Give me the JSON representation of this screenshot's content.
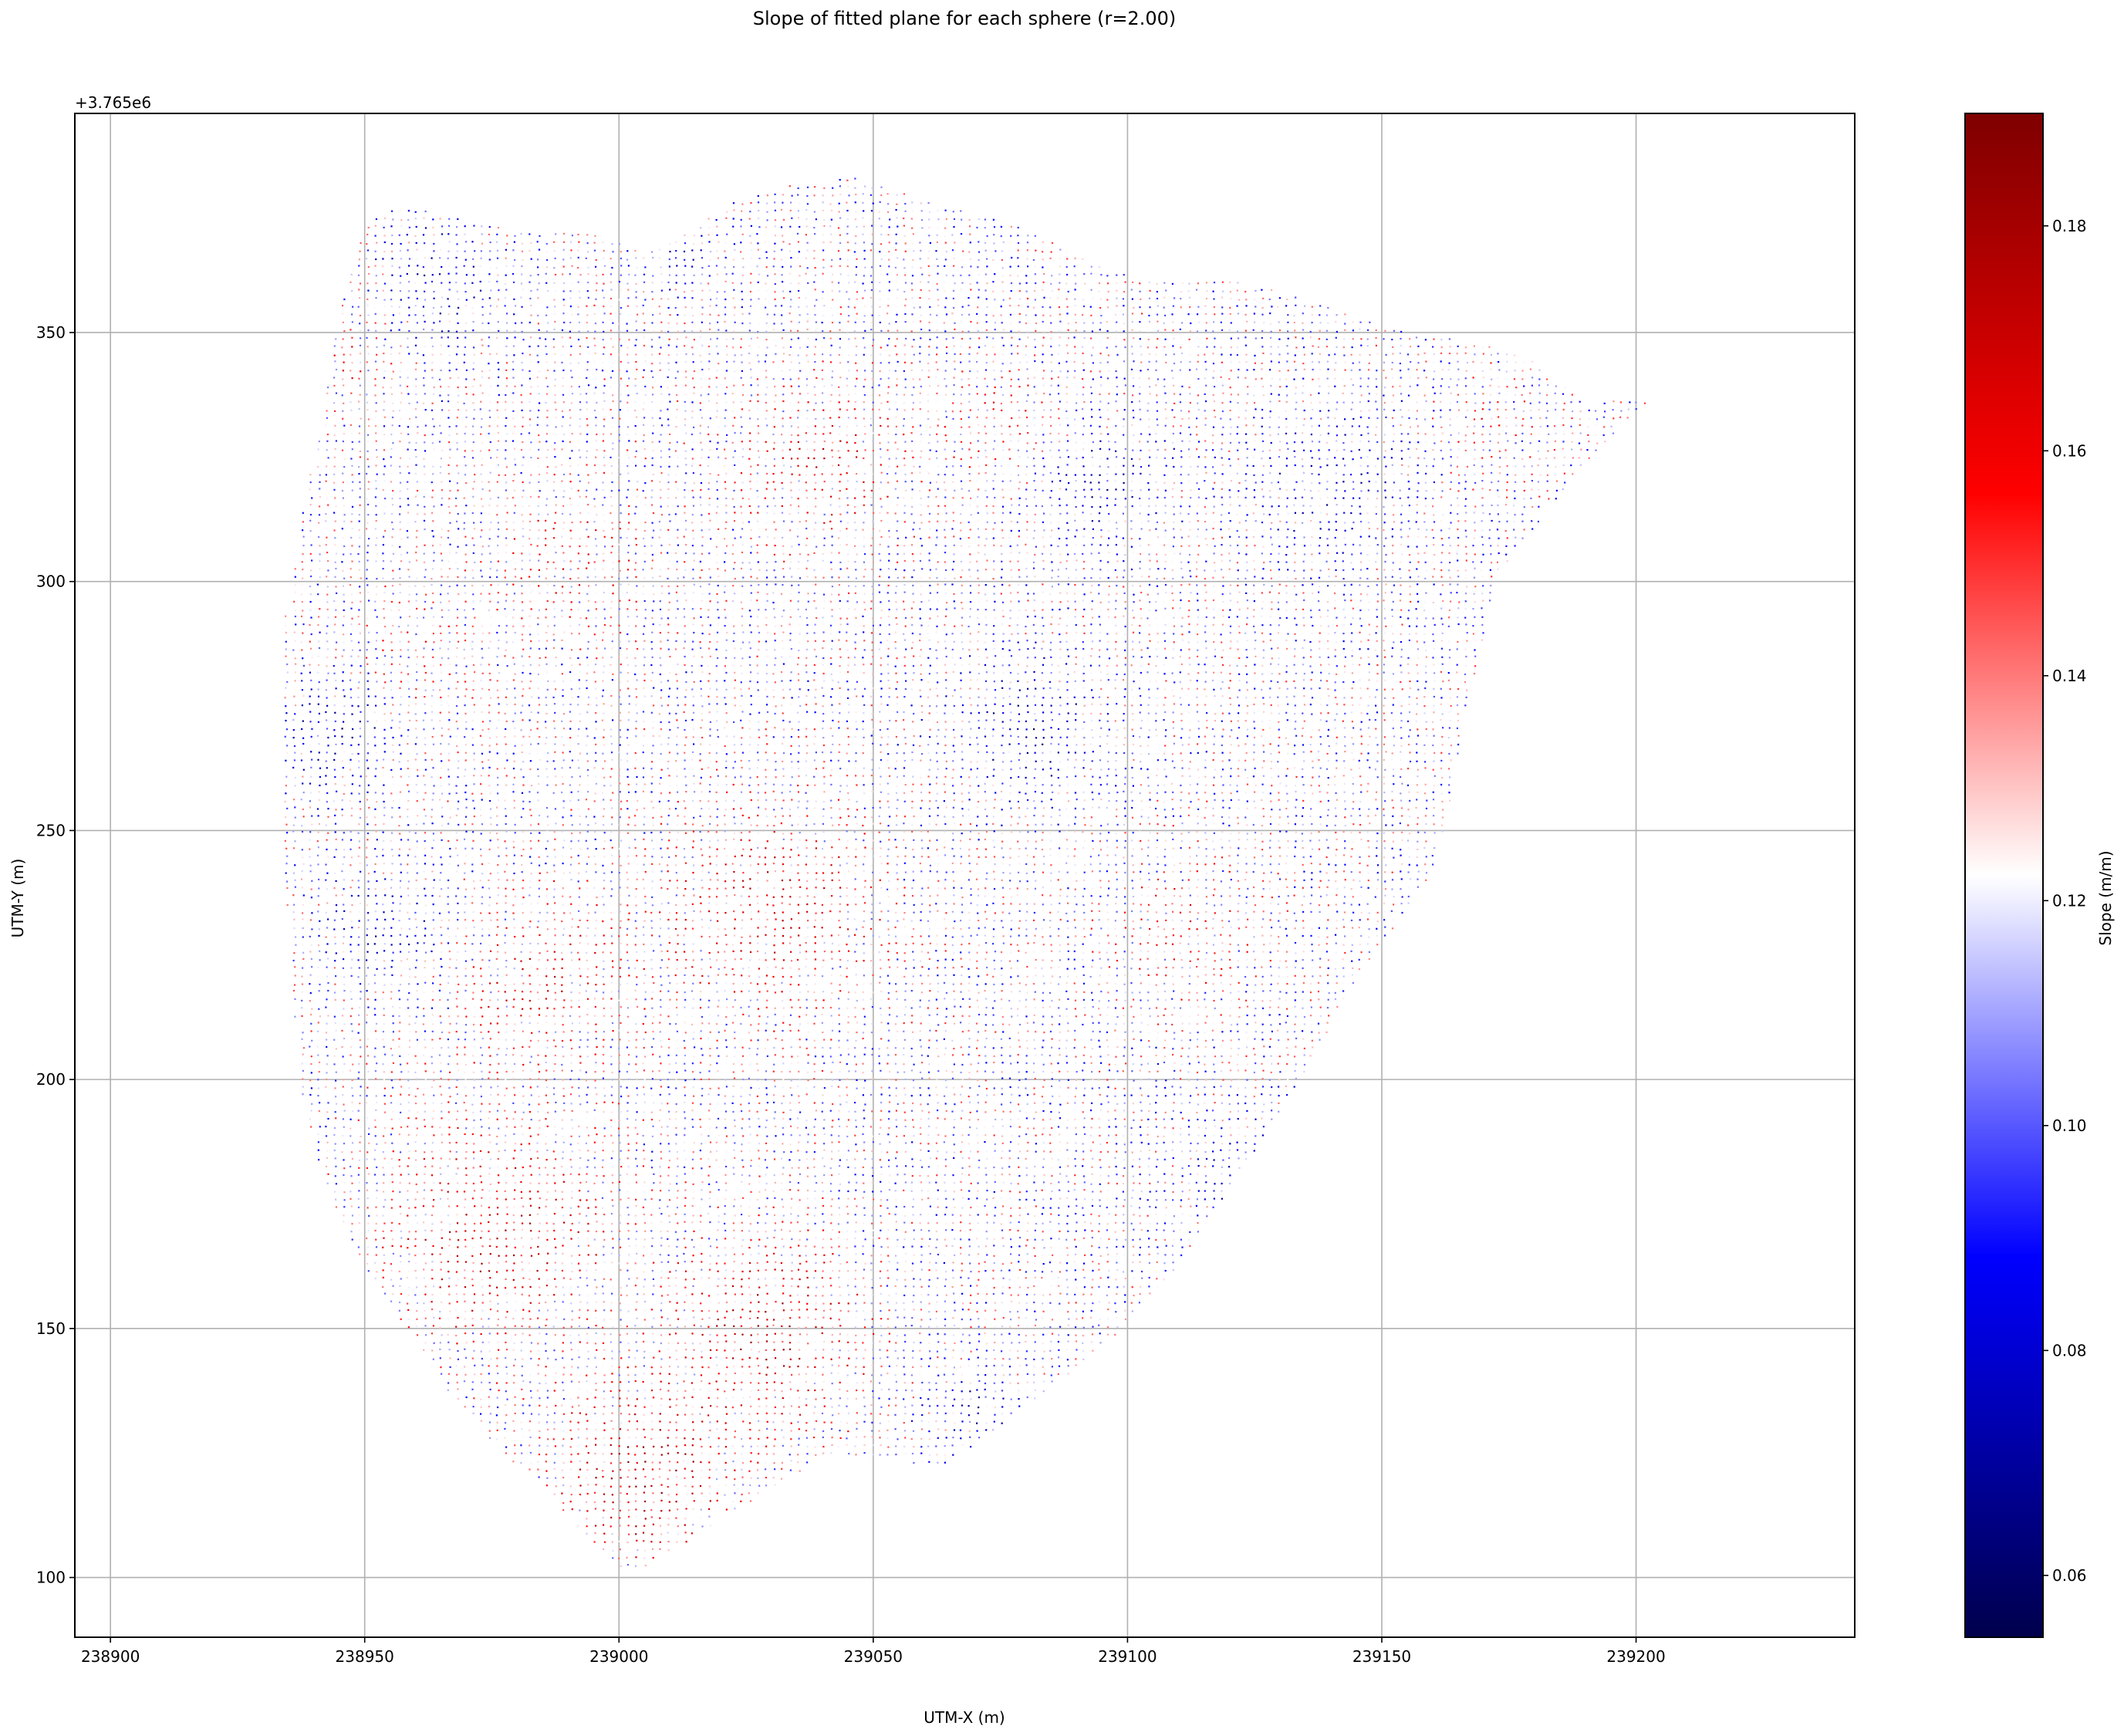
{
  "chart_data": {
    "type": "scatter",
    "title": "Slope of fitted plane for each sphere (r=2.00)",
    "xlabel": "UTM-X (m)",
    "ylabel": "UTM-Y (m)",
    "y_offset_label": "+3.765e6",
    "xlim": [
      238893,
      239243
    ],
    "ylim": [
      88,
      394
    ],
    "x_ticks": [
      238900,
      238950,
      239000,
      239050,
      239100,
      239150,
      239200
    ],
    "x_tick_labels": [
      "238900",
      "238950",
      "239000",
      "239050",
      "239100",
      "239150",
      "239200"
    ],
    "y_ticks": [
      100,
      150,
      200,
      250,
      300,
      350
    ],
    "y_tick_labels": [
      "100",
      "150",
      "200",
      "250",
      "300",
      "350"
    ],
    "grid": true,
    "colorbar": {
      "label": "Slope (m/m)",
      "colormap": "seismic",
      "range": [
        0.0545,
        0.19
      ],
      "ticks": [
        0.06,
        0.08,
        0.1,
        0.12,
        0.14,
        0.16,
        0.18
      ],
      "tick_labels": [
        "0.06",
        "0.08",
        "0.10",
        "0.12",
        "0.14",
        "0.16",
        "0.18"
      ]
    },
    "boundary_polygon": [
      [
        239001,
        101
      ],
      [
        238994,
        108
      ],
      [
        238985,
        118
      ],
      [
        238974,
        128
      ],
      [
        238966,
        138
      ],
      [
        238958,
        150
      ],
      [
        238951,
        160
      ],
      [
        238946,
        170
      ],
      [
        238942,
        180
      ],
      [
        238939,
        190
      ],
      [
        238937,
        200
      ],
      [
        238936,
        215
      ],
      [
        238935,
        230
      ],
      [
        238934,
        250
      ],
      [
        238933,
        270
      ],
      [
        238934,
        290
      ],
      [
        238936,
        305
      ],
      [
        238939,
        320
      ],
      [
        238942,
        335
      ],
      [
        238944,
        348
      ],
      [
        238947,
        362
      ],
      [
        238951,
        373
      ],
      [
        238958,
        376
      ],
      [
        238968,
        373
      ],
      [
        238982,
        370
      ],
      [
        238995,
        370
      ],
      [
        239005,
        366
      ],
      [
        239015,
        371
      ],
      [
        239022,
        376
      ],
      [
        239035,
        380
      ],
      [
        239047,
        381
      ],
      [
        239062,
        376
      ],
      [
        239080,
        371
      ],
      [
        239095,
        363
      ],
      [
        239105,
        360
      ],
      [
        239118,
        361
      ],
      [
        239128,
        359
      ],
      [
        239140,
        355
      ],
      [
        239155,
        350
      ],
      [
        239170,
        348
      ],
      [
        239180,
        344
      ],
      [
        239190,
        336
      ],
      [
        239203,
        337
      ],
      [
        239196,
        330
      ],
      [
        239188,
        322
      ],
      [
        239180,
        310
      ],
      [
        239173,
        302
      ],
      [
        239170,
        288
      ],
      [
        239166,
        272
      ],
      [
        239164,
        258
      ],
      [
        239160,
        242
      ],
      [
        239152,
        230
      ],
      [
        239145,
        220
      ],
      [
        239137,
        205
      ],
      [
        239128,
        190
      ],
      [
        239118,
        175
      ],
      [
        239108,
        160
      ],
      [
        239097,
        148
      ],
      [
        239085,
        138
      ],
      [
        239072,
        128
      ],
      [
        239063,
        122
      ],
      [
        239053,
        124
      ],
      [
        239043,
        125
      ],
      [
        239030,
        118
      ],
      [
        239018,
        110
      ],
      [
        239008,
        104
      ],
      [
        239003,
        101
      ]
    ],
    "zones": [
      {
        "x": 238945,
        "y": 345,
        "r": 10,
        "value": 0.135
      },
      {
        "x": 238960,
        "y": 285,
        "r": 12,
        "value": 0.132
      },
      {
        "x": 238990,
        "y": 305,
        "r": 14,
        "value": 0.14
      },
      {
        "x": 239040,
        "y": 325,
        "r": 15,
        "value": 0.145
      },
      {
        "x": 239075,
        "y": 330,
        "r": 12,
        "value": 0.135
      },
      {
        "x": 239030,
        "y": 235,
        "r": 20,
        "value": 0.15
      },
      {
        "x": 238985,
        "y": 220,
        "r": 16,
        "value": 0.145
      },
      {
        "x": 238975,
        "y": 170,
        "r": 22,
        "value": 0.155
      },
      {
        "x": 239005,
        "y": 120,
        "r": 16,
        "value": 0.165
      },
      {
        "x": 239030,
        "y": 150,
        "r": 18,
        "value": 0.158
      },
      {
        "x": 239110,
        "y": 230,
        "r": 14,
        "value": 0.135
      },
      {
        "x": 239170,
        "y": 330,
        "r": 10,
        "value": 0.13
      },
      {
        "x": 239080,
        "y": 270,
        "r": 14,
        "value": 0.085
      },
      {
        "x": 239095,
        "y": 320,
        "r": 12,
        "value": 0.09
      },
      {
        "x": 239140,
        "y": 320,
        "r": 16,
        "value": 0.095
      },
      {
        "x": 238945,
        "y": 270,
        "r": 12,
        "value": 0.09
      },
      {
        "x": 238955,
        "y": 230,
        "r": 12,
        "value": 0.095
      },
      {
        "x": 239125,
        "y": 180,
        "r": 12,
        "value": 0.09
      },
      {
        "x": 239070,
        "y": 135,
        "r": 8,
        "value": 0.09
      },
      {
        "x": 238965,
        "y": 360,
        "r": 12,
        "value": 0.09
      },
      {
        "x": 239010,
        "y": 365,
        "r": 8,
        "value": 0.095
      }
    ]
  }
}
